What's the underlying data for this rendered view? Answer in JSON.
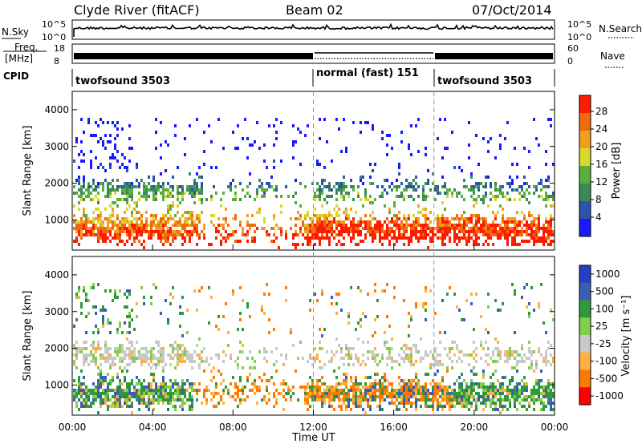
{
  "header": {
    "station": "Clyde River (fitACF)",
    "beam": "Beam 02",
    "date": "07/Oct/2014"
  },
  "top_panels": {
    "nsky_label": "N.Sky",
    "nsearch_label": "N.Search",
    "freq_label_1": "Freq.",
    "freq_label_2": "[MHz]",
    "nave_label": "Nave",
    "cpid_label": "CPID",
    "noise_ticks": [
      "10^5",
      "10^0"
    ],
    "freq_ticks": [
      "18",
      "8"
    ],
    "nave_ticks": [
      "60",
      "0"
    ],
    "cpid_segments": [
      {
        "name": "twofsound 3503",
        "start_hour": 0,
        "end_hour": 12
      },
      {
        "name": "normal (fast) 151",
        "start_hour": 12,
        "end_hour": 18
      },
      {
        "name": "twofsound 3503",
        "start_hour": 18,
        "end_hour": 24
      }
    ]
  },
  "colors": {
    "power": [
      "#1a1aff",
      "#2b55a8",
      "#3a8a5a",
      "#5cae3a",
      "#d9d92a",
      "#f0a020",
      "#f06a10",
      "#ff1a00"
    ],
    "velocity": [
      "#ff0000",
      "#ff7a00",
      "#ffb040",
      "#c8c8c8",
      "#7fcf4a",
      "#2f9a3a",
      "#3a5fb0",
      "#2a3fbf"
    ]
  },
  "chart_data": [
    {
      "type": "heatmap",
      "name": "power",
      "ylabel": "Slant Range [km]",
      "ylim": [
        180,
        4500
      ],
      "xlim_hours": [
        0,
        24
      ],
      "y_ticks": [
        1000,
        2000,
        3000,
        4000
      ],
      "colorbar_label": "Power [dB]",
      "colorbar_ticks": [
        "28",
        "24",
        "20",
        "16",
        "12",
        "8",
        "4"
      ],
      "colorbar_range": [
        0,
        32
      ]
    },
    {
      "type": "heatmap",
      "name": "velocity",
      "ylabel": "Slant Range [km]",
      "ylim": [
        180,
        4500
      ],
      "xlim_hours": [
        0,
        24
      ],
      "y_ticks": [
        1000,
        2000,
        3000,
        4000
      ],
      "colorbar_label": "Velocity [m s⁻¹]",
      "colorbar_ticks": [
        "1000",
        "500",
        "100",
        "25",
        "-25",
        "-100",
        "-500",
        "-1000"
      ]
    }
  ],
  "x_axis": {
    "title": "Time UT",
    "ticks": [
      "00:00",
      "04:00",
      "08:00",
      "12:00",
      "16:00",
      "20:00",
      "00:00"
    ]
  }
}
